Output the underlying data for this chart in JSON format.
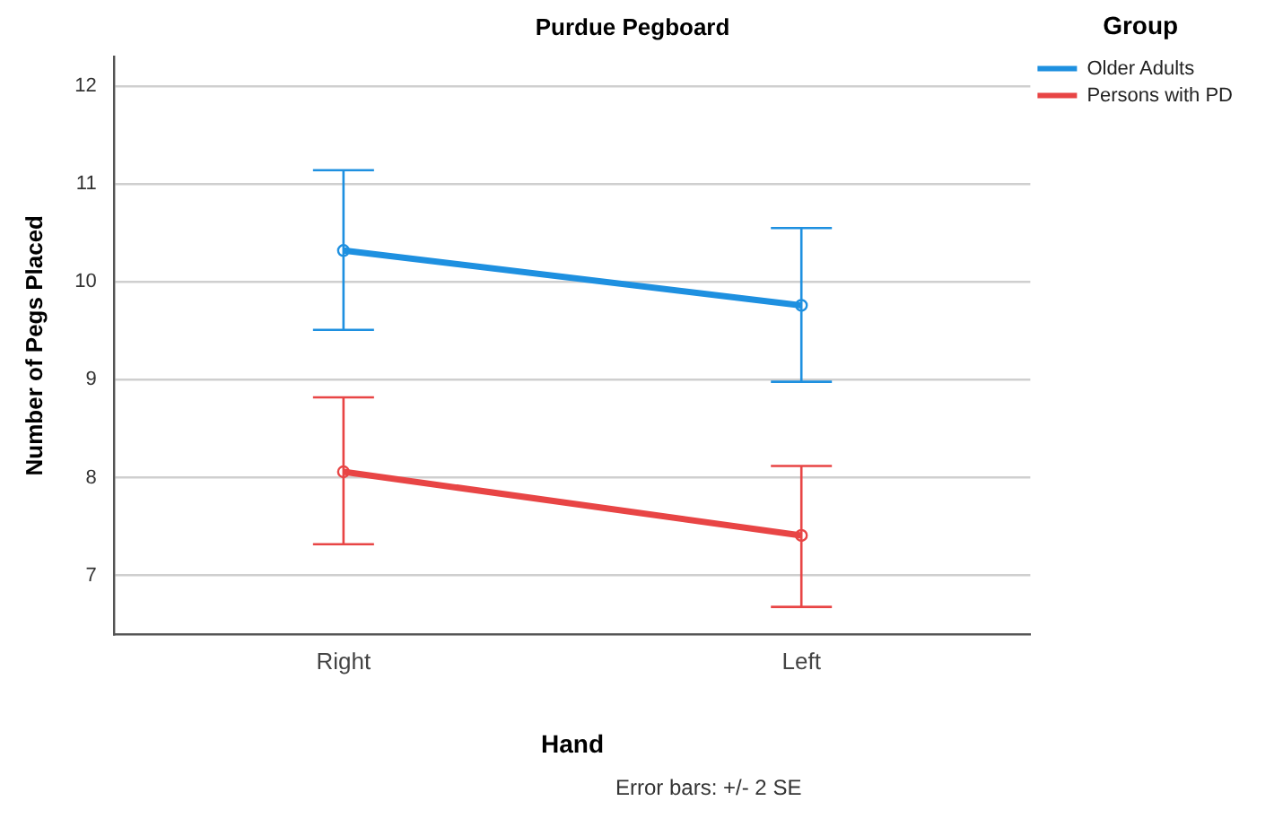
{
  "chart_data": {
    "type": "line",
    "title": "Purdue Pegboard",
    "xlabel": "Hand",
    "ylabel": "Number of Pegs Placed",
    "legend_title": "Group",
    "categories": [
      "Right",
      "Left"
    ],
    "series": [
      {
        "name": "Older Adults",
        "color": "#1e90e0",
        "values": [
          10.32,
          9.76
        ],
        "errors": [
          [
            9.51,
            11.14
          ],
          [
            8.98,
            10.55
          ]
        ]
      },
      {
        "name": "Persons with PD",
        "color": "#e84545",
        "values": [
          8.06,
          7.41
        ],
        "errors": [
          [
            7.32,
            8.82
          ],
          [
            6.68,
            8.12
          ]
        ]
      }
    ],
    "ylim": [
      6.4,
      12.3
    ],
    "yticks": [
      7,
      8,
      9,
      10,
      11,
      12
    ],
    "grid": "y",
    "legend": "top right",
    "marker": "circle",
    "line_style": "solid",
    "annotations": [
      "Error bars: +/- 2 SE"
    ]
  }
}
